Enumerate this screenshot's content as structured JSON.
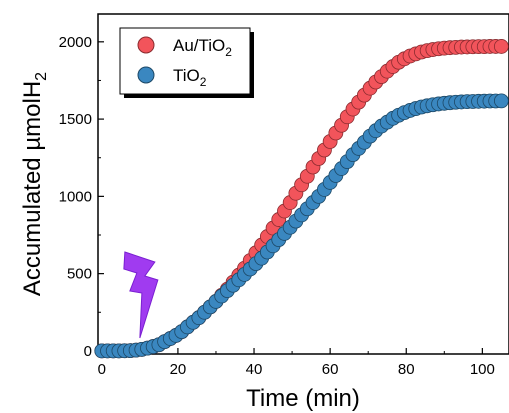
{
  "chart_data": {
    "type": "scatter",
    "xlabel": "Time (min)",
    "ylabel": "Accumulated µmolH",
    "ylabel_subscript": "2",
    "xlim": [
      -1,
      107
    ],
    "ylim": [
      -20,
      2180
    ],
    "x_ticks": [
      0,
      20,
      40,
      60,
      80,
      100
    ],
    "y_ticks": [
      0,
      500,
      1000,
      1500,
      2000
    ],
    "grid": false,
    "legend_position": "top-left",
    "annotation_icon": "lightning-bolt-icon",
    "annotation_x": 10,
    "series": [
      {
        "name": "Au/TiO",
        "name_subscript": "2",
        "color": "#f2545b",
        "edge": "#8a2b2f",
        "x": [
          0,
          1.5,
          3,
          4.5,
          6,
          7.5,
          9,
          10.5,
          12,
          13.5,
          15,
          16.5,
          18,
          19.5,
          21,
          22.5,
          24,
          25.5,
          27,
          28.5,
          30,
          31.5,
          33,
          34.5,
          36,
          37.5,
          39,
          40.5,
          42,
          43.5,
          45,
          46.5,
          48,
          49.5,
          51,
          52.5,
          54,
          55.5,
          57,
          58.5,
          60,
          61.5,
          63,
          64.5,
          66,
          67.5,
          69,
          70.5,
          72,
          73.5,
          75,
          76.5,
          78,
          79.5,
          81,
          82.5,
          84,
          85.5,
          87,
          88.5,
          90,
          91.5,
          93,
          94.5,
          96,
          97.5,
          99,
          100.5,
          102,
          103.5,
          105
        ],
        "y": [
          0,
          0,
          0,
          0,
          1,
          2,
          5,
          10,
          18,
          28,
          40,
          60,
          80,
          100,
          125,
          155,
          185,
          215,
          250,
          285,
          320,
          360,
          400,
          445,
          490,
          535,
          585,
          635,
          685,
          740,
          795,
          850,
          905,
          960,
          1020,
          1075,
          1130,
          1190,
          1245,
          1300,
          1355,
          1410,
          1460,
          1515,
          1565,
          1610,
          1655,
          1700,
          1740,
          1775,
          1810,
          1840,
          1868,
          1890,
          1908,
          1922,
          1934,
          1943,
          1950,
          1955,
          1959,
          1962,
          1964,
          1966,
          1967,
          1968,
          1969,
          1969,
          1970,
          1970,
          1970
        ]
      },
      {
        "name": "TiO",
        "name_subscript": "2",
        "color": "#3a87c0",
        "edge": "#1c4866",
        "x": [
          0,
          1.5,
          3,
          4.5,
          6,
          7.5,
          9,
          10.5,
          12,
          13.5,
          15,
          16.5,
          18,
          19.5,
          21,
          22.5,
          24,
          25.5,
          27,
          28.5,
          30,
          31.5,
          33,
          34.5,
          36,
          37.5,
          39,
          40.5,
          42,
          43.5,
          45,
          46.5,
          48,
          49.5,
          51,
          52.5,
          54,
          55.5,
          57,
          58.5,
          60,
          61.5,
          63,
          64.5,
          66,
          67.5,
          69,
          70.5,
          72,
          73.5,
          75,
          76.5,
          78,
          79.5,
          81,
          82.5,
          84,
          85.5,
          87,
          88.5,
          90,
          91.5,
          93,
          94.5,
          96,
          97.5,
          99,
          100.5,
          102,
          103.5,
          105
        ],
        "y": [
          0,
          0,
          0,
          0,
          1,
          2,
          5,
          10,
          18,
          28,
          40,
          60,
          80,
          100,
          125,
          155,
          185,
          215,
          250,
          285,
          320,
          355,
          390,
          425,
          460,
          495,
          530,
          565,
          600,
          640,
          680,
          720,
          760,
          800,
          840,
          880,
          920,
          960,
          1000,
          1045,
          1090,
          1135,
          1180,
          1225,
          1270,
          1310,
          1350,
          1390,
          1425,
          1455,
          1480,
          1505,
          1525,
          1542,
          1556,
          1568,
          1578,
          1586,
          1593,
          1598,
          1602,
          1606,
          1609,
          1611,
          1613,
          1614,
          1615,
          1616,
          1617,
          1617,
          1618
        ]
      }
    ]
  }
}
